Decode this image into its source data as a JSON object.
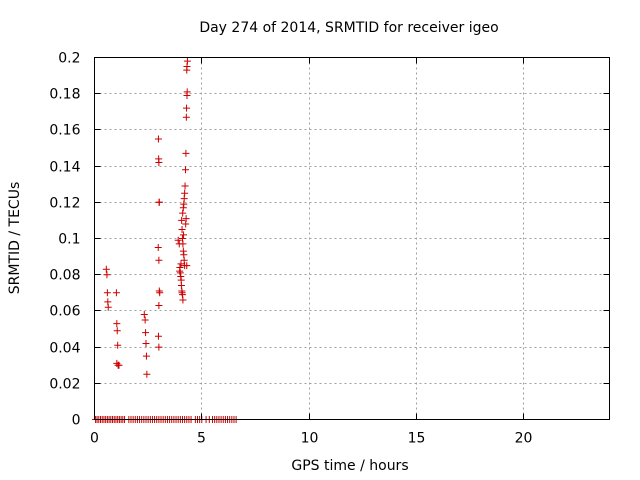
{
  "chart_data": {
    "type": "scatter",
    "title": "Day 274 of 2014, SRMTID for receiver igeo",
    "xlabel": "GPS time / hours",
    "ylabel": "SRMTID / TECUs",
    "xlim": [
      0,
      24
    ],
    "ylim": [
      0,
      0.2
    ],
    "x_ticks": [
      0,
      5,
      10,
      15,
      20
    ],
    "x_tick_labels": [
      "0",
      "5",
      "10",
      "15",
      "20"
    ],
    "y_ticks": [
      0,
      0.02,
      0.04,
      0.06,
      0.08,
      0.1,
      0.12,
      0.14,
      0.16,
      0.18,
      0.2
    ],
    "y_tick_labels": [
      "0",
      "0.02",
      "0.04",
      "0.06",
      "0.08",
      "0.1",
      "0.12",
      "0.14",
      "0.16",
      "0.18",
      "0.2"
    ],
    "grid": true,
    "marker": "plus",
    "color": "#cc0000",
    "series": [
      {
        "name": "SRMTID",
        "points": [
          [
            0.55,
            0.083
          ],
          [
            0.58,
            0.08
          ],
          [
            0.6,
            0.07
          ],
          [
            0.62,
            0.065
          ],
          [
            0.64,
            0.062
          ],
          [
            1.02,
            0.07
          ],
          [
            1.04,
            0.053
          ],
          [
            1.06,
            0.049
          ],
          [
            1.08,
            0.041
          ],
          [
            1.04,
            0.031
          ],
          [
            1.1,
            0.03
          ],
          [
            1.14,
            0.03
          ],
          [
            2.32,
            0.058
          ],
          [
            2.36,
            0.055
          ],
          [
            2.38,
            0.048
          ],
          [
            2.4,
            0.042
          ],
          [
            2.42,
            0.035
          ],
          [
            2.44,
            0.025
          ],
          [
            2.98,
            0.155
          ],
          [
            2.99,
            0.144
          ],
          [
            3.0,
            0.142
          ],
          [
            3.01,
            0.12
          ],
          [
            3.02,
            0.12
          ],
          [
            2.97,
            0.095
          ],
          [
            3.0,
            0.088
          ],
          [
            3.02,
            0.071
          ],
          [
            3.04,
            0.07
          ],
          [
            3.0,
            0.063
          ],
          [
            2.98,
            0.046
          ],
          [
            3.0,
            0.04
          ],
          [
            3.9,
            0.099
          ],
          [
            3.95,
            0.097
          ],
          [
            3.98,
            0.084
          ],
          [
            4.0,
            0.081
          ],
          [
            4.02,
            0.079
          ],
          [
            4.04,
            0.077
          ],
          [
            4.05,
            0.074
          ],
          [
            4.07,
            0.071
          ],
          [
            4.08,
            0.07
          ],
          [
            4.1,
            0.069
          ],
          [
            4.12,
            0.066
          ],
          [
            4.06,
            0.11
          ],
          [
            4.08,
            0.105
          ],
          [
            4.1,
            0.1
          ],
          [
            4.12,
            0.097
          ],
          [
            4.14,
            0.093
          ],
          [
            4.16,
            0.091
          ],
          [
            4.18,
            0.088
          ],
          [
            4.2,
            0.085
          ],
          [
            4.11,
            0.114
          ],
          [
            4.14,
            0.117
          ],
          [
            4.16,
            0.119
          ],
          [
            4.18,
            0.122
          ],
          [
            4.2,
            0.125
          ],
          [
            4.22,
            0.129
          ],
          [
            4.24,
            0.138
          ],
          [
            4.26,
            0.147
          ],
          [
            4.28,
            0.167
          ],
          [
            4.29,
            0.172
          ],
          [
            4.31,
            0.179
          ],
          [
            4.32,
            0.181
          ],
          [
            4.3,
            0.193
          ],
          [
            4.31,
            0.195
          ],
          [
            4.33,
            0.198
          ],
          [
            4.25,
            0.108
          ],
          [
            4.27,
            0.111
          ],
          [
            4.3,
            0.085
          ],
          [
            4.15,
            0.102
          ],
          [
            3.97,
            0.082
          ],
          [
            4.03,
            0.086
          ],
          [
            0.05,
            0
          ],
          [
            0.12,
            0
          ],
          [
            0.2,
            0
          ],
          [
            0.28,
            0
          ],
          [
            0.36,
            0
          ],
          [
            0.44,
            0
          ],
          [
            0.52,
            0
          ],
          [
            0.6,
            0
          ],
          [
            0.68,
            0
          ],
          [
            0.76,
            0
          ],
          [
            0.84,
            0
          ],
          [
            0.92,
            0
          ],
          [
            1.0,
            0
          ],
          [
            1.08,
            0
          ],
          [
            1.16,
            0
          ],
          [
            1.24,
            0
          ],
          [
            1.32,
            0
          ],
          [
            1.4,
            0
          ],
          [
            1.6,
            0
          ],
          [
            1.7,
            0
          ],
          [
            1.8,
            0
          ],
          [
            1.9,
            0
          ],
          [
            2.0,
            0
          ],
          [
            2.1,
            0
          ],
          [
            2.2,
            0
          ],
          [
            2.3,
            0
          ],
          [
            2.4,
            0
          ],
          [
            2.5,
            0
          ],
          [
            2.6,
            0
          ],
          [
            2.7,
            0
          ],
          [
            2.8,
            0
          ],
          [
            2.9,
            0
          ],
          [
            3.0,
            0
          ],
          [
            3.1,
            0
          ],
          [
            3.2,
            0
          ],
          [
            3.3,
            0
          ],
          [
            3.4,
            0
          ],
          [
            3.5,
            0
          ],
          [
            3.6,
            0
          ],
          [
            3.7,
            0
          ],
          [
            3.8,
            0
          ],
          [
            3.9,
            0
          ],
          [
            4.0,
            0
          ],
          [
            4.1,
            0
          ],
          [
            4.2,
            0
          ],
          [
            4.3,
            0
          ],
          [
            4.4,
            0
          ],
          [
            4.5,
            0
          ],
          [
            4.7,
            0
          ],
          [
            4.8,
            0
          ],
          [
            4.9,
            0
          ],
          [
            5.0,
            0
          ],
          [
            5.2,
            0
          ],
          [
            5.35,
            0
          ],
          [
            5.5,
            0
          ],
          [
            5.6,
            0
          ],
          [
            5.7,
            0
          ],
          [
            5.8,
            0
          ],
          [
            5.9,
            0
          ],
          [
            6.0,
            0
          ],
          [
            6.1,
            0
          ],
          [
            6.2,
            0
          ],
          [
            6.3,
            0
          ],
          [
            6.4,
            0
          ],
          [
            6.5,
            0
          ],
          [
            6.6,
            0
          ]
        ]
      }
    ]
  }
}
